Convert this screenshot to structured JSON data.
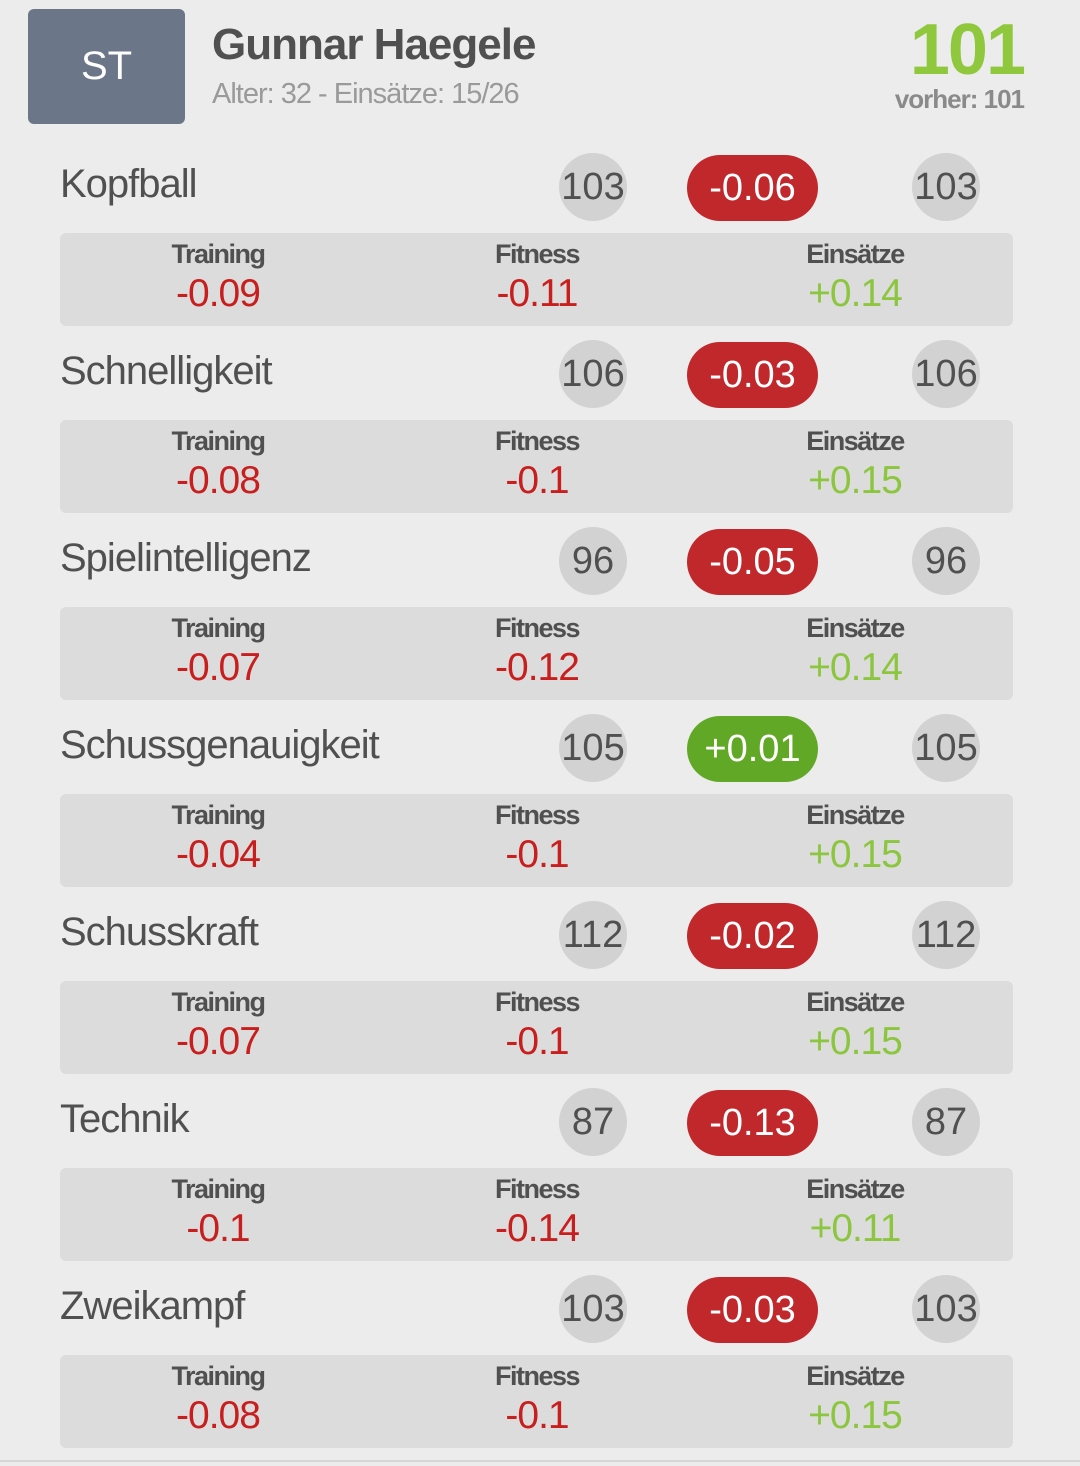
{
  "player": {
    "position": "ST",
    "name": "Gunnar Haegele",
    "meta": "Alter: 32 - Einsätze: 15/26",
    "rating": "101",
    "previous": "vorher: 101"
  },
  "labels": {
    "training": "Training",
    "fitness": "Fitness",
    "einsaetze": "Einsätze"
  },
  "colors": {
    "negative": "#c0282c",
    "positive": "#62a827",
    "positive_text": "#8cc63f",
    "rating": "#8fc83c",
    "badge": "#6c7689"
  },
  "skills": [
    {
      "name": "Kopfball",
      "before": "103",
      "delta": "-0.06",
      "after": "103",
      "training": "-0.09",
      "fitness": "-0.11",
      "einsaetze": "+0.14"
    },
    {
      "name": "Schnelligkeit",
      "before": "106",
      "delta": "-0.03",
      "after": "106",
      "training": "-0.08",
      "fitness": "-0.1",
      "einsaetze": "+0.15"
    },
    {
      "name": "Spielintelligenz",
      "before": "96",
      "delta": "-0.05",
      "after": "96",
      "training": "-0.07",
      "fitness": "-0.12",
      "einsaetze": "+0.14"
    },
    {
      "name": "Schussgenauigkeit",
      "before": "105",
      "delta": "+0.01",
      "after": "105",
      "training": "-0.04",
      "fitness": "-0.1",
      "einsaetze": "+0.15"
    },
    {
      "name": "Schusskraft",
      "before": "112",
      "delta": "-0.02",
      "after": "112",
      "training": "-0.07",
      "fitness": "-0.1",
      "einsaetze": "+0.15"
    },
    {
      "name": "Technik",
      "before": "87",
      "delta": "-0.13",
      "after": "87",
      "training": "-0.1",
      "fitness": "-0.14",
      "einsaetze": "+0.11"
    },
    {
      "name": "Zweikampf",
      "before": "103",
      "delta": "-0.03",
      "after": "103",
      "training": "-0.08",
      "fitness": "-0.1",
      "einsaetze": "+0.15"
    }
  ]
}
